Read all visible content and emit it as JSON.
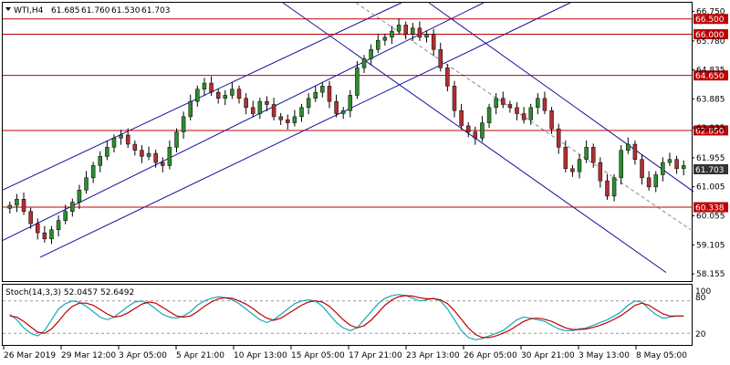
{
  "header": {
    "symbol": "WTI,H4",
    "open": "61.685",
    "high": "61.760",
    "low": "61.530",
    "close": "61.703",
    "menu_icon": "triangle-down-icon"
  },
  "chart_data": {
    "type": "candlestick",
    "price_axis": {
      "range": [
        57.95,
        67.0
      ],
      "ticks": [
        "66.750",
        "65.780",
        "64.835",
        "63.885",
        "62.935",
        "61.955",
        "61.005",
        "60.055",
        "59.105",
        "58.155"
      ]
    },
    "time_axis": {
      "labels": [
        "26 Mar 2019",
        "29 Mar 12:00",
        "3 Apr 05:00",
        "5 Apr 21:00",
        "10 Apr 13:00",
        "15 Apr 05:00",
        "17 Apr 21:00",
        "23 Apr 13:00",
        "26 Apr 05:00",
        "30 Apr 21:00",
        "3 May 13:00",
        "8 May 05:00"
      ]
    },
    "current_price": "61.703",
    "horizontal_levels": [
      {
        "value": 66.5,
        "label": "66.500"
      },
      {
        "value": 66.0,
        "label": "66.000"
      },
      {
        "value": 64.65,
        "label": "64.650"
      },
      {
        "value": 62.85,
        "label": "62.850"
      },
      {
        "value": 60.338,
        "label": "60.338"
      }
    ],
    "candle_color_up": "#2e8b2e",
    "candle_color_down": "#b03030",
    "level_color": "#c00000",
    "channel_color": "#1010a0",
    "closes": [
      60.4,
      60.6,
      60.2,
      59.8,
      59.5,
      59.3,
      59.6,
      59.9,
      60.2,
      60.5,
      60.9,
      61.3,
      61.7,
      62.0,
      62.3,
      62.6,
      62.7,
      62.4,
      62.2,
      62.0,
      62.1,
      61.8,
      61.7,
      62.3,
      62.8,
      63.3,
      63.8,
      64.2,
      64.4,
      64.1,
      63.9,
      64.0,
      64.2,
      63.9,
      63.6,
      63.4,
      63.8,
      63.7,
      63.3,
      63.2,
      63.1,
      63.3,
      63.6,
      63.9,
      64.1,
      64.3,
      63.8,
      63.4,
      63.5,
      64.0,
      64.9,
      65.2,
      65.5,
      65.8,
      65.9,
      66.1,
      66.3,
      66.0,
      66.2,
      65.9,
      66.0,
      65.5,
      64.9,
      64.3,
      63.5,
      63.0,
      62.8,
      62.6,
      63.1,
      63.6,
      63.9,
      63.7,
      63.6,
      63.4,
      63.2,
      63.6,
      63.9,
      63.5,
      62.9,
      62.3,
      61.6,
      61.5,
      61.9,
      62.3,
      61.8,
      61.2,
      60.7,
      61.3,
      62.2,
      62.4,
      61.9,
      61.3,
      61.0,
      61.4,
      61.8,
      61.9,
      61.6,
      61.7
    ],
    "stochastic": {
      "label": "Stoch(14,3,3) 52.0457 52.6492",
      "main_value": 52.0457,
      "signal_value": 52.6492,
      "levels": [
        80,
        20
      ],
      "top_label": "100",
      "level_labels": [
        "80",
        "20"
      ],
      "main_color": "#18a8b8",
      "signal_color": "#c00000",
      "main": [
        55,
        45,
        30,
        20,
        15,
        25,
        45,
        65,
        75,
        80,
        78,
        70,
        60,
        50,
        45,
        50,
        60,
        70,
        78,
        80,
        75,
        65,
        55,
        50,
        48,
        52,
        60,
        72,
        80,
        85,
        88,
        86,
        82,
        75,
        65,
        55,
        45,
        40,
        45,
        55,
        65,
        75,
        80,
        82,
        80,
        70,
        55,
        40,
        30,
        25,
        30,
        45,
        60,
        75,
        85,
        90,
        92,
        90,
        85,
        80,
        82,
        85,
        80,
        65,
        45,
        25,
        12,
        8,
        10,
        15,
        20,
        25,
        35,
        45,
        50,
        48,
        45,
        42,
        35,
        28,
        25,
        25,
        28,
        30,
        35,
        40,
        45,
        52,
        60,
        72,
        80,
        78,
        65,
        55,
        48,
        50,
        52,
        52
      ],
      "signal": [
        52,
        50,
        42,
        32,
        22,
        20,
        28,
        42,
        58,
        70,
        76,
        76,
        72,
        64,
        56,
        50,
        52,
        58,
        66,
        74,
        78,
        76,
        68,
        60,
        52,
        50,
        52,
        60,
        70,
        78,
        84,
        86,
        85,
        80,
        74,
        66,
        56,
        48,
        44,
        48,
        56,
        64,
        72,
        78,
        80,
        78,
        70,
        58,
        45,
        35,
        30,
        34,
        44,
        58,
        72,
        82,
        88,
        90,
        89,
        86,
        84,
        84,
        82,
        75,
        62,
        46,
        30,
        18,
        12,
        12,
        15,
        20,
        26,
        34,
        42,
        47,
        48,
        46,
        42,
        36,
        30,
        27,
        27,
        28,
        31,
        35,
        40,
        46,
        53,
        62,
        72,
        76,
        72,
        64,
        56,
        52,
        52,
        52
      ]
    }
  }
}
